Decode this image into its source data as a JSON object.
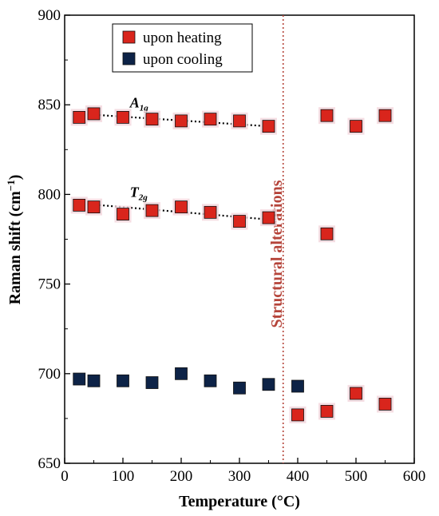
{
  "chart_data": {
    "type": "scatter",
    "xlabel": "Temperature (°C)",
    "ylabel_main": "Raman shift (cm",
    "ylabel_sup": "−1",
    "ylabel_close": ")",
    "xlim": [
      0,
      600
    ],
    "ylim": [
      650,
      900
    ],
    "xticks": [
      "0",
      "100",
      "200",
      "300",
      "400",
      "500",
      "600"
    ],
    "yticks": [
      "650",
      "700",
      "750",
      "800",
      "850",
      "900"
    ],
    "grid": false,
    "legend_position": "top-left",
    "colors": {
      "heating": "#d9251c",
      "cooling": "#0d2347",
      "marker_edge": "#000000",
      "annotation": "#b5443a"
    },
    "legend": {
      "heating_label": "upon heating",
      "cooling_label": "upon cooling"
    },
    "series": [
      {
        "name": "upon heating",
        "points": [
          [
            25,
            843
          ],
          [
            50,
            845
          ],
          [
            100,
            843
          ],
          [
            150,
            842
          ],
          [
            200,
            841
          ],
          [
            250,
            842
          ],
          [
            300,
            841
          ],
          [
            350,
            838
          ],
          [
            450,
            844
          ],
          [
            500,
            838
          ],
          [
            550,
            844
          ],
          [
            25,
            794
          ],
          [
            50,
            793
          ],
          [
            100,
            789
          ],
          [
            150,
            791
          ],
          [
            200,
            793
          ],
          [
            250,
            790
          ],
          [
            300,
            785
          ],
          [
            350,
            787
          ],
          [
            450,
            778
          ],
          [
            400,
            677
          ],
          [
            450,
            679
          ],
          [
            500,
            689
          ],
          [
            550,
            683
          ]
        ]
      },
      {
        "name": "upon cooling",
        "points": [
          [
            25,
            697
          ],
          [
            50,
            696
          ],
          [
            100,
            696
          ],
          [
            150,
            695
          ],
          [
            200,
            700
          ],
          [
            250,
            696
          ],
          [
            300,
            692
          ],
          [
            350,
            694
          ],
          [
            400,
            693
          ]
        ]
      }
    ],
    "trendlines": [
      {
        "label": "A",
        "subscript": "1g",
        "from": [
          25,
          845
        ],
        "to": [
          350,
          838
        ]
      },
      {
        "label": "T",
        "subscript": "2g",
        "from": [
          25,
          795
        ],
        "to": [
          350,
          786
        ]
      }
    ],
    "vertical_line": {
      "x": 375,
      "label": "Structural alterations"
    }
  }
}
